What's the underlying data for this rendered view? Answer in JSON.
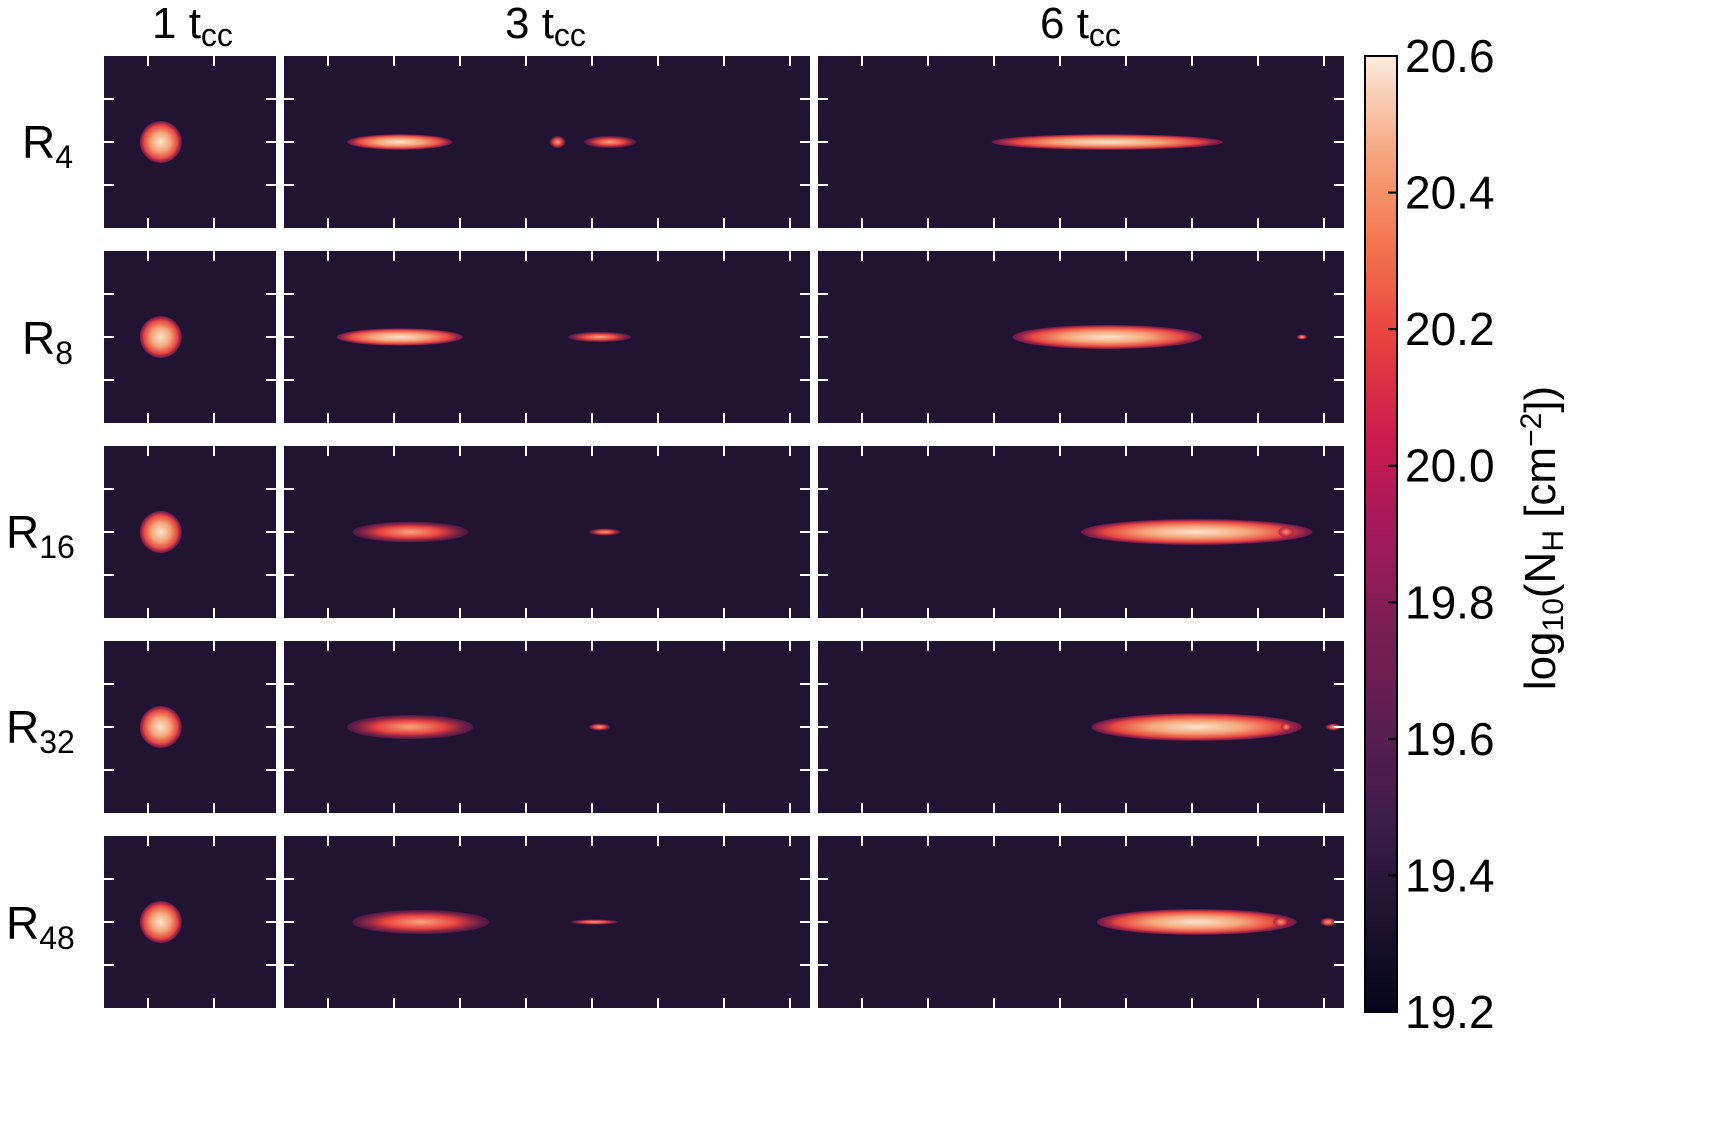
{
  "chart_data": {
    "type": "heatmap",
    "columns": [
      {
        "title_main": "1 t",
        "title_sub": "cc"
      },
      {
        "title_main": "3 t",
        "title_sub": "cc"
      },
      {
        "title_main": "6 t",
        "title_sub": "cc"
      }
    ],
    "rows": [
      {
        "label_main": "R",
        "label_sub": "4"
      },
      {
        "label_main": "R",
        "label_sub": "8"
      },
      {
        "label_main": "R",
        "label_sub": "16"
      },
      {
        "label_main": "R",
        "label_sub": "32"
      },
      {
        "label_main": "R",
        "label_sub": "48"
      }
    ],
    "colorbar": {
      "label_pre": "log",
      "label_log_sub": "10",
      "label_mid": "(N",
      "label_n_sub": "H",
      "label_post1": " [cm",
      "label_sup": "−2",
      "label_post2": "])",
      "range": [
        19.2,
        20.6
      ],
      "ticks": [
        "20.6",
        "20.4",
        "20.2",
        "20.0",
        "19.8",
        "19.6",
        "19.4",
        "19.2"
      ],
      "colormap": "rocket"
    },
    "background_value": 19.35
  }
}
